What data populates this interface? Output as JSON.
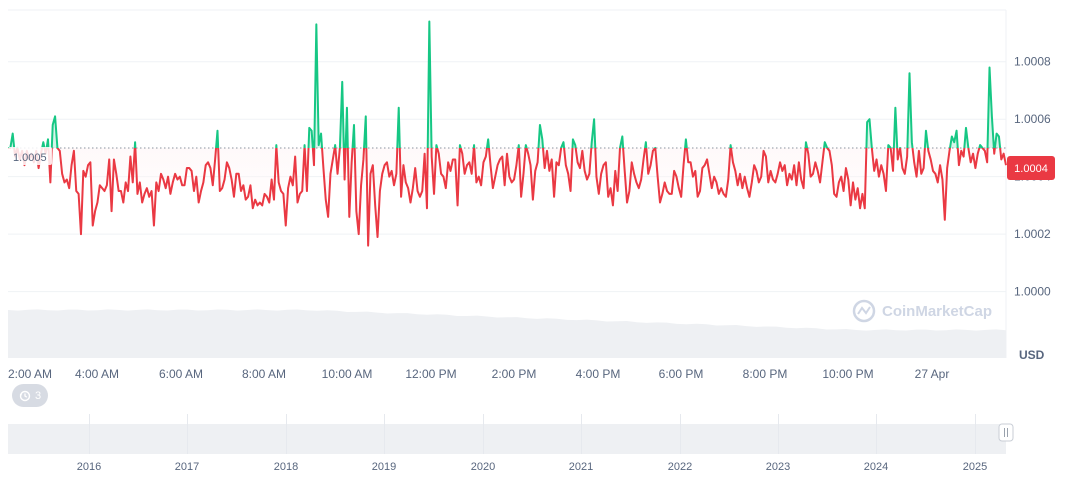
{
  "chart_data": {
    "type": "line",
    "baseline": 1.0005,
    "current_value": "1.0004",
    "currency": "USD",
    "ylim": [
      0.99995,
      1.00098
    ],
    "y_ticks": [
      "1.0000",
      "1.0002",
      "1.0004",
      "1.0006",
      "1.0008"
    ],
    "baseline_label": "1.0005",
    "x_ticks": [
      "2:00 AM",
      "4:00 AM",
      "6:00 AM",
      "8:00 AM",
      "10:00 AM",
      "12:00 PM",
      "2:00 PM",
      "4:00 PM",
      "6:00 PM",
      "8:00 PM",
      "10:00 PM",
      "27 Apr"
    ],
    "colors": {
      "above": "#16c784",
      "below": "#ea3943",
      "area_below": "#fde4e6",
      "area_above": "#d6f5ea"
    },
    "watermark": "CoinMarketCap",
    "navigator_years": [
      "2016",
      "2017",
      "2018",
      "2019",
      "2020",
      "2021",
      "2022",
      "2023",
      "2024",
      "2025"
    ],
    "history_count": "3",
    "values": [
      1.0005,
      1.0005,
      1.00055,
      1.00047,
      1.0005,
      1.00046,
      1.00049,
      1.00044,
      1.00049,
      1.00046,
      1.00048,
      1.00045,
      1.00049,
      1.00043,
      1.00048,
      1.00052,
      1.00048,
      1.00053,
      1.00038,
      1.00058,
      1.00061,
      1.0005,
      1.00049,
      1.00041,
      1.00038,
      1.00039,
      1.00036,
      1.00044,
      1.00049,
      1.00035,
      1.00034,
      1.0002,
      1.00042,
      1.0004,
      1.00044,
      1.00045,
      1.00023,
      1.00028,
      1.00031,
      1.00037,
      1.00036,
      1.00035,
      1.00037,
      1.00046,
      1.00028,
      1.00046,
      1.00041,
      1.00035,
      1.00035,
      1.00031,
      1.00038,
      1.00035,
      1.00047,
      1.00038,
      1.00052,
      1.00034,
      1.00038,
      1.00031,
      1.00034,
      1.00036,
      1.00033,
      1.00035,
      1.00023,
      1.00038,
      1.00035,
      1.00041,
      1.00039,
      1.00036,
      1.0004,
      1.00034,
      1.00038,
      1.00041,
      1.00039,
      1.0004,
      1.00037,
      1.00037,
      1.00043,
      1.00043,
      1.00042,
      1.00035,
      1.0004,
      1.00031,
      1.00035,
      1.00038,
      1.00044,
      1.00045,
      1.00043,
      1.00037,
      1.00046,
      1.00056,
      1.00035,
      1.00036,
      1.00039,
      1.00045,
      1.00043,
      1.00039,
      1.00033,
      1.00041,
      1.00041,
      1.00035,
      1.00037,
      1.00032,
      1.00033,
      1.00037,
      1.00029,
      1.00032,
      1.0003,
      1.00031,
      1.0003,
      1.00034,
      1.00033,
      1.00031,
      1.00039,
      1.00032,
      1.00051,
      1.00038,
      1.00035,
      1.00034,
      1.00023,
      1.00036,
      1.0004,
      1.00037,
      1.00047,
      1.00031,
      1.00034,
      1.00035,
      1.00051,
      1.00035,
      1.00057,
      1.00056,
      1.00044,
      1.00093,
      1.00051,
      1.00055,
      1.00043,
      1.00032,
      1.00026,
      1.00041,
      1.00046,
      1.00051,
      1.00041,
      1.0005,
      1.00073,
      1.00039,
      1.00064,
      1.00026,
      1.00045,
      1.00058,
      1.00028,
      1.0002,
      1.00037,
      1.00046,
      1.00061,
      1.00016,
      1.00041,
      1.00044,
      1.0003,
      1.00019,
      1.00035,
      1.00041,
      1.00044,
      1.00045,
      1.0004,
      1.00042,
      1.00037,
      1.00041,
      1.00064,
      1.00033,
      1.00044,
      1.00038,
      1.00036,
      1.00031,
      1.00036,
      1.00043,
      1.00035,
      1.00033,
      1.00035,
      1.00048,
      1.00029,
      1.00094,
      1.00047,
      1.00034,
      1.00051,
      1.00048,
      1.00041,
      1.0004,
      1.00036,
      1.00045,
      1.00042,
      1.00046,
      1.00046,
      1.0003,
      1.00051,
      1.00048,
      1.00041,
      1.00044,
      1.00045,
      1.00041,
      1.00051,
      1.00038,
      1.0004,
      1.00037,
      1.00045,
      1.00047,
      1.00053,
      1.00044,
      1.00036,
      1.0004,
      1.00044,
      1.00046,
      1.00047,
      1.00037,
      1.00048,
      1.0004,
      1.00038,
      1.00039,
      1.00044,
      1.00051,
      1.00033,
      1.00041,
      1.00051,
      1.00048,
      1.00044,
      1.00032,
      1.00042,
      1.00045,
      1.00058,
      1.00053,
      1.00043,
      1.00049,
      1.00042,
      1.00046,
      1.00033,
      1.00045,
      1.00044,
      1.0005,
      1.00052,
      1.00044,
      1.00041,
      1.00035,
      1.00053,
      1.00051,
      1.00045,
      1.00043,
      1.00049,
      1.00042,
      1.00039,
      1.00041,
      1.00052,
      1.0006,
      1.0004,
      1.00034,
      1.00041,
      1.00044,
      1.00045,
      1.00033,
      1.00036,
      1.0003,
      1.00042,
      1.00035,
      1.0005,
      1.00054,
      1.00042,
      1.00031,
      1.00035,
      1.00045,
      1.00041,
      1.00038,
      1.00036,
      1.00039,
      1.00046,
      1.00052,
      1.00041,
      1.00044,
      1.00049,
      1.0005,
      1.0004,
      1.00031,
      1.00034,
      1.00038,
      1.00035,
      1.00034,
      1.00034,
      1.00042,
      1.0004,
      1.00036,
      1.00033,
      1.00044,
      1.00053,
      1.00045,
      1.00045,
      1.0004,
      1.00042,
      1.00033,
      1.00035,
      1.00043,
      1.00044,
      1.00046,
      1.00041,
      1.00036,
      1.0004,
      1.00038,
      1.00034,
      1.00036,
      1.00034,
      1.00033,
      1.00039,
      1.00051,
      1.00045,
      1.00042,
      1.00037,
      1.00041,
      1.00036,
      1.0004,
      1.00036,
      1.00033,
      1.00038,
      1.00044,
      1.00042,
      1.00038,
      1.0004,
      1.00049,
      1.00047,
      1.00038,
      1.00042,
      1.00039,
      1.00038,
      1.00041,
      1.00045,
      1.00042,
      1.00044,
      1.00037,
      1.00041,
      1.00039,
      1.00044,
      1.00037,
      1.00045,
      1.00039,
      1.00036,
      1.00052,
      1.00048,
      1.0004,
      1.00041,
      1.00045,
      1.00042,
      1.00038,
      1.00045,
      1.00052,
      1.0005,
      1.00049,
      1.00044,
      1.00034,
      1.00033,
      1.00038,
      1.0004,
      1.00035,
      1.00043,
      1.00039,
      1.0003,
      1.00038,
      1.00032,
      1.00036,
      1.00029,
      1.00034,
      1.00029,
      1.00059,
      1.0006,
      1.0005,
      1.00042,
      1.00046,
      1.0004,
      1.00044,
      1.00041,
      1.00035,
      1.00051,
      1.0005,
      1.00042,
      1.00064,
      1.00046,
      1.0005,
      1.00043,
      1.00041,
      1.00047,
      1.00076,
      1.00052,
      1.00045,
      1.0004,
      1.00049,
      1.00041,
      1.00043,
      1.00056,
      1.00049,
      1.00046,
      1.00042,
      1.00041,
      1.00038,
      1.00044,
      1.00039,
      1.00025,
      1.00043,
      1.00049,
      1.00054,
      1.00052,
      1.00056,
      1.00044,
      1.00049,
      1.00047,
      1.00057,
      1.0005,
      1.00045,
      1.00048,
      1.00043,
      1.00048,
      1.00051,
      1.0005,
      1.00049,
      1.00045,
      1.00078,
      1.00061,
      1.00048,
      1.00055,
      1.00054,
      1.00046,
      1.00048,
      1.00044
    ]
  }
}
